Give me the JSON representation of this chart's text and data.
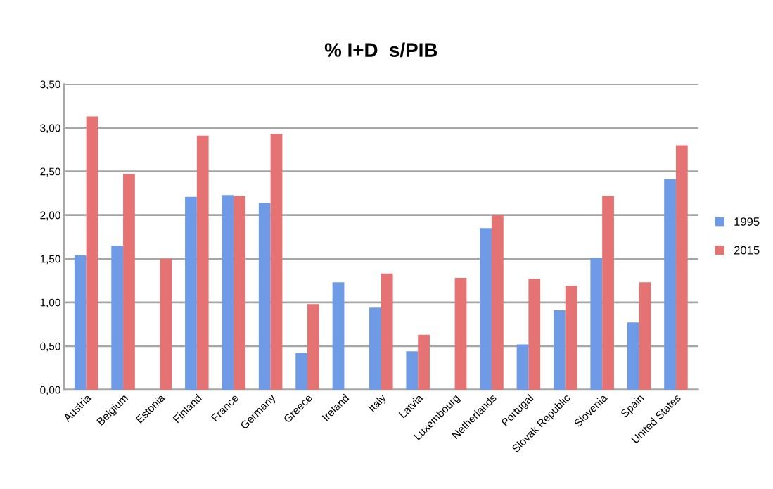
{
  "chart_data": {
    "type": "bar",
    "title": "% I+D  s/PIB",
    "categories": [
      "Austria",
      "Belgium",
      "Estonia",
      "Finland",
      "France",
      "Germany",
      "Greece",
      "Ireland",
      "Italy",
      "Latvia",
      "Luxembourg",
      "Netherlands",
      "Portugal",
      "Slovak Republic",
      "Slovenia",
      "Spain",
      "United States"
    ],
    "series": [
      {
        "name": "1995",
        "color": "#6f9be6",
        "values": [
          1.54,
          1.65,
          null,
          2.21,
          2.23,
          2.14,
          0.42,
          1.23,
          0.94,
          0.44,
          null,
          1.85,
          0.52,
          0.91,
          1.51,
          0.77,
          2.41
        ]
      },
      {
        "name": "2015",
        "color": "#e57373",
        "values": [
          3.13,
          2.47,
          1.5,
          2.91,
          2.22,
          2.93,
          0.98,
          null,
          1.33,
          0.63,
          1.28,
          2.0,
          1.27,
          1.19,
          2.22,
          1.23,
          2.8
        ]
      }
    ],
    "ylim": [
      0,
      3.5
    ],
    "yticks": [
      {
        "value": 0,
        "label": "0,00"
      },
      {
        "value": 0.5,
        "label": "0,50"
      },
      {
        "value": 1.0,
        "label": "1,00"
      },
      {
        "value": 1.5,
        "label": "1,50"
      },
      {
        "value": 2.0,
        "label": "2,00"
      },
      {
        "value": 2.5,
        "label": "2,50"
      },
      {
        "value": 3.0,
        "label": "3,00"
      },
      {
        "value": 3.5,
        "label": "3,50"
      }
    ],
    "grid": "y",
    "legend": "right"
  }
}
